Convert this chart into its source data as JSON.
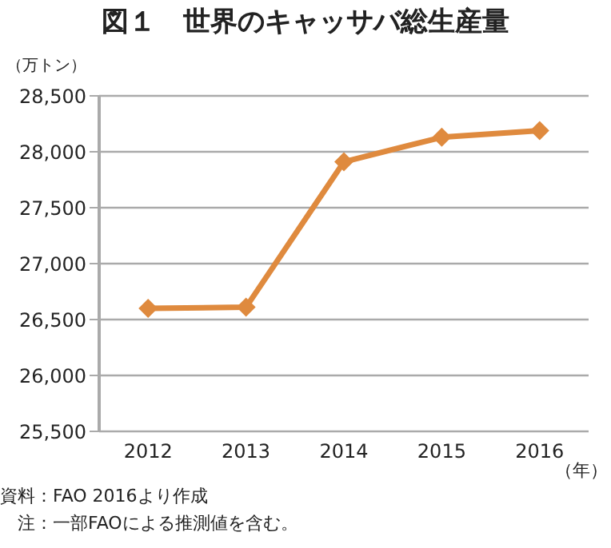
{
  "chart_data": {
    "type": "line",
    "title": "図１　世界のキャッサバ総生産量",
    "ylabel": "（万トン）",
    "xlabel": "（年）",
    "categories": [
      "2012",
      "2013",
      "2014",
      "2015",
      "2016"
    ],
    "series": [
      {
        "color": "#df8a3e",
        "values": [
          26600,
          26610,
          27910,
          28130,
          28190
        ]
      }
    ],
    "ylim": [
      25500,
      28500
    ],
    "yticks": [
      {
        "value": 25500,
        "label": "25,500"
      },
      {
        "value": 26000,
        "label": "26,000"
      },
      {
        "value": 26500,
        "label": "26,500"
      },
      {
        "value": 27000,
        "label": "27,000"
      },
      {
        "value": 27500,
        "label": "27,500"
      },
      {
        "value": 28000,
        "label": "28,000"
      },
      {
        "value": 28500,
        "label": "28,500"
      }
    ],
    "grid": "y",
    "legend": false,
    "marker": "diamond",
    "line_style": "solid",
    "annotations": [
      "資料：FAO 2016より作成",
      "　注：一部FAOによる推測値を含む。"
    ]
  }
}
